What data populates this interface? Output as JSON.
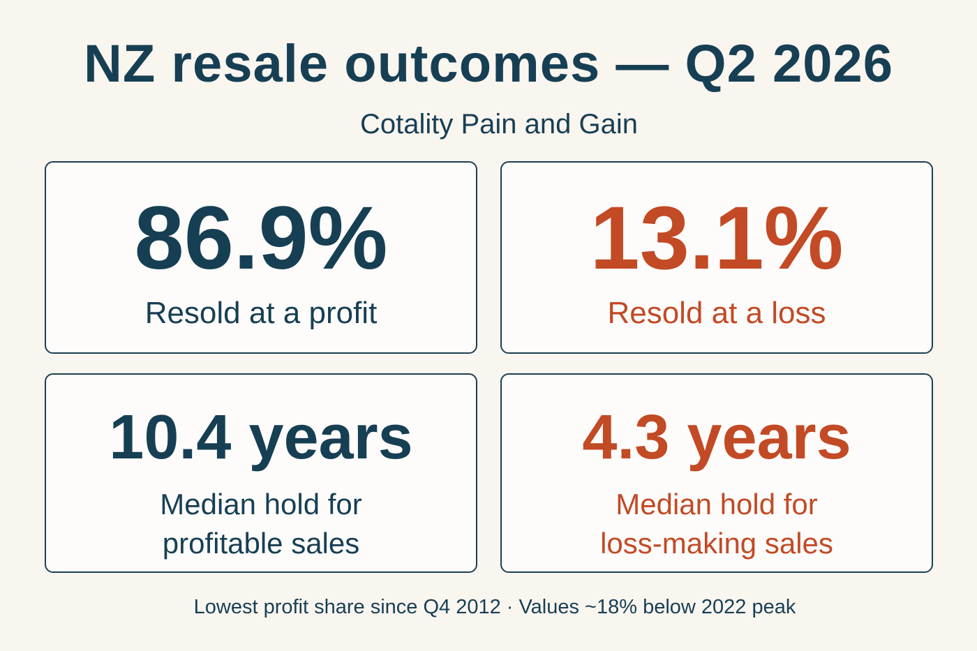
{
  "header": {
    "title": "NZ resale outcomes — Q2 2026",
    "subtitle": "Cotality Pain and Gain"
  },
  "cards": {
    "profit_share": {
      "value": "86.9%",
      "label": "Resold at a profit"
    },
    "loss_share": {
      "value": "13.1%",
      "label": "Resold at a loss"
    },
    "profit_hold": {
      "value": "10.4 years",
      "label_line1": "Median hold for",
      "label_line2": "profitable sales"
    },
    "loss_hold": {
      "value": "4.3 years",
      "label_line1": "Median hold for",
      "label_line2": "loss-making sales"
    }
  },
  "footer": {
    "note": "Lowest profit share since Q4 2012 · Values ~18% below 2022 peak"
  },
  "colors": {
    "background": "#f9f5ef",
    "navy": "#173f54",
    "rust": "#c24a25",
    "card_border": "#1c3f52"
  }
}
